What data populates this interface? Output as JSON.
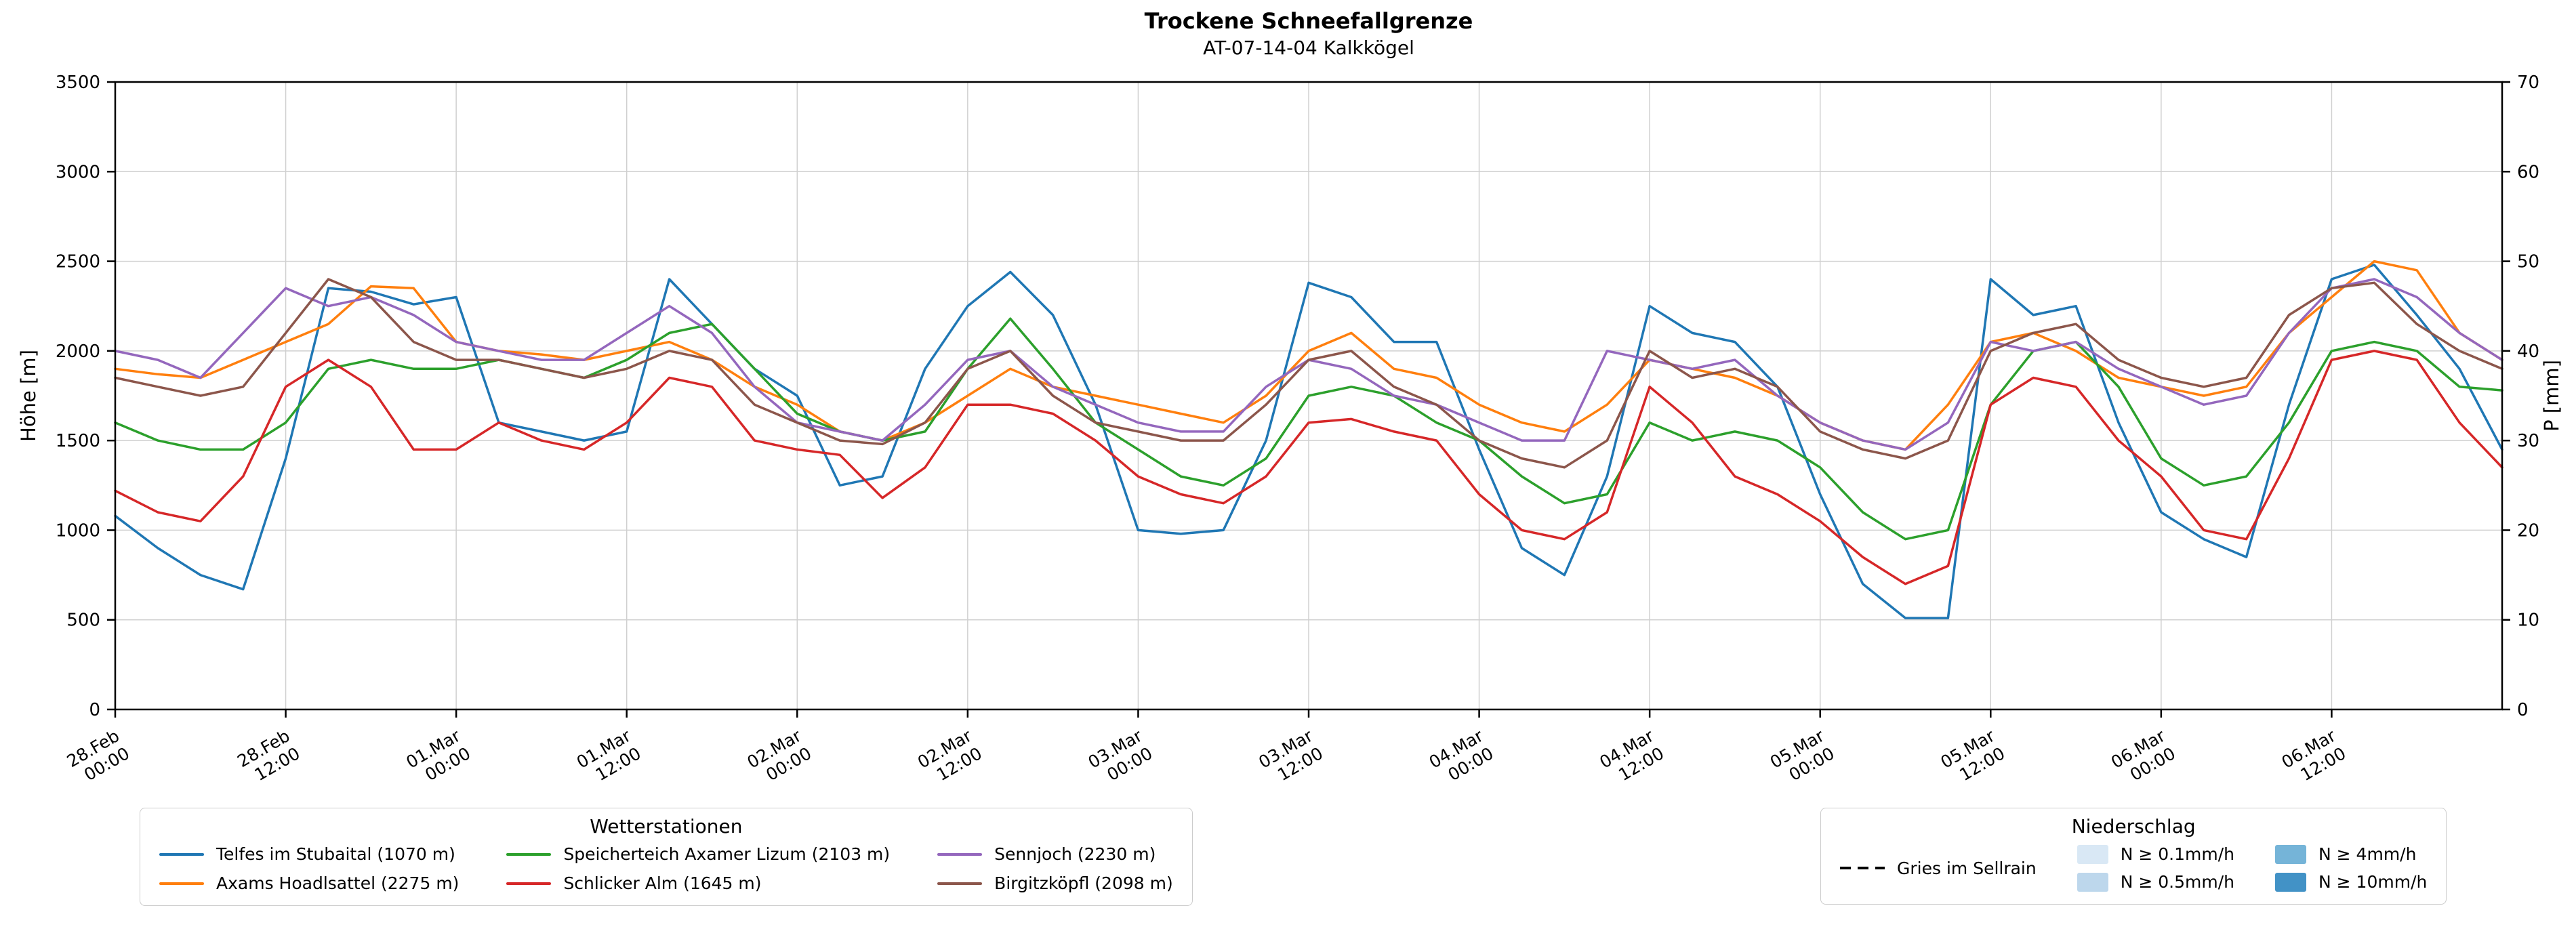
{
  "title": "Trockene Schneefallgrenze",
  "subtitle": "AT-07-14-04 Kalkkögel",
  "chart_data": {
    "type": "line",
    "title": "Trockene Schneefallgrenze",
    "subtitle": "AT-07-14-04 Kalkkögel",
    "ylabel_left": "Höhe [m]",
    "ylabel_right": "P [mm]",
    "ylim_left": [
      0,
      3500
    ],
    "ylim_right": [
      0,
      70
    ],
    "yticks_left": [
      0,
      500,
      1000,
      1500,
      2000,
      2500,
      3000,
      3500
    ],
    "yticks_right": [
      0,
      10,
      20,
      30,
      40,
      50,
      60,
      70
    ],
    "grid": true,
    "legend_position": "bottom",
    "x_unit": "hours since 28.Feb 00:00",
    "x_range": [
      0,
      168
    ],
    "x_step": 3,
    "x_tick_positions": [
      0,
      12,
      24,
      36,
      48,
      60,
      72,
      84,
      96,
      108,
      120,
      132,
      144,
      156
    ],
    "x_tick_labels": [
      "28.Feb\n00:00",
      "28.Feb\n12:00",
      "01.Mar\n00:00",
      "01.Mar\n12:00",
      "02.Mar\n00:00",
      "02.Mar\n12:00",
      "03.Mar\n00:00",
      "03.Mar\n12:00",
      "04.Mar\n00:00",
      "04.Mar\n12:00",
      "05.Mar\n00:00",
      "05.Mar\n12:00",
      "06.Mar\n00:00",
      "06.Mar\n12:00"
    ],
    "series": [
      {
        "id": "telfes",
        "name": "Telfes im Stubaital (1070 m)",
        "color": "#1f77b4",
        "values": [
          1080,
          900,
          750,
          670,
          1400,
          2350,
          2330,
          2260,
          2300,
          1600,
          1550,
          1500,
          1550,
          2400,
          2150,
          1900,
          1750,
          1250,
          1300,
          1900,
          2250,
          2440,
          2200,
          1700,
          1000,
          980,
          1000,
          1500,
          2380,
          2300,
          2050,
          2050,
          1450,
          900,
          750,
          1300,
          2250,
          2100,
          2050,
          1800,
          1200,
          700,
          510,
          510,
          2400,
          2200,
          2250,
          1600,
          1100,
          950,
          850,
          1700,
          2400,
          2480,
          2200,
          1900,
          1450
        ]
      },
      {
        "id": "axams",
        "name": "Axams Hoadlsattel (2275 m)",
        "color": "#ff7f0e",
        "values": [
          1900,
          1870,
          1850,
          1950,
          2050,
          2150,
          2360,
          2350,
          2050,
          2000,
          1980,
          1950,
          2000,
          2050,
          1950,
          1800,
          1700,
          1550,
          1500,
          1600,
          1750,
          1900,
          1800,
          1750,
          1700,
          1650,
          1600,
          1750,
          2000,
          2100,
          1900,
          1850,
          1700,
          1600,
          1550,
          1700,
          1950,
          1900,
          1850,
          1750,
          1600,
          1500,
          1450,
          1700,
          2050,
          2100,
          2000,
          1850,
          1800,
          1750,
          1800,
          2100,
          2300,
          2500,
          2450,
          2100,
          1950
        ]
      },
      {
        "id": "speicherteich",
        "name": "Speicherteich Axamer Lizum (2103 m)",
        "color": "#2ca02c",
        "values": [
          1600,
          1500,
          1450,
          1450,
          1600,
          1900,
          1950,
          1900,
          1900,
          1950,
          1900,
          1850,
          1950,
          2100,
          2150,
          1900,
          1650,
          1550,
          1500,
          1550,
          1900,
          2180,
          1900,
          1600,
          1450,
          1300,
          1250,
          1400,
          1750,
          1800,
          1750,
          1600,
          1500,
          1300,
          1150,
          1200,
          1600,
          1500,
          1550,
          1500,
          1350,
          1100,
          950,
          1000,
          1700,
          2000,
          2050,
          1800,
          1400,
          1250,
          1300,
          1600,
          2000,
          2050,
          2000,
          1800,
          1780
        ]
      },
      {
        "id": "schlicker",
        "name": "Schlicker Alm (1645 m)",
        "color": "#d62728",
        "values": [
          1220,
          1100,
          1050,
          1300,
          1800,
          1950,
          1800,
          1450,
          1450,
          1600,
          1500,
          1450,
          1600,
          1850,
          1800,
          1500,
          1450,
          1420,
          1180,
          1350,
          1700,
          1700,
          1650,
          1500,
          1300,
          1200,
          1150,
          1300,
          1600,
          1620,
          1550,
          1500,
          1200,
          1000,
          950,
          1100,
          1800,
          1600,
          1300,
          1200,
          1050,
          850,
          700,
          800,
          1700,
          1850,
          1800,
          1500,
          1300,
          1000,
          950,
          1400,
          1950,
          2000,
          1950,
          1600,
          1350
        ]
      },
      {
        "id": "sennjoch",
        "name": "Sennjoch (2230 m)",
        "color": "#9467bd",
        "values": [
          2000,
          1950,
          1850,
          2100,
          2350,
          2250,
          2300,
          2200,
          2050,
          2000,
          1950,
          1950,
          2100,
          2250,
          2100,
          1800,
          1600,
          1550,
          1500,
          1700,
          1950,
          2000,
          1800,
          1700,
          1600,
          1550,
          1550,
          1800,
          1950,
          1900,
          1750,
          1700,
          1600,
          1500,
          1500,
          2000,
          1950,
          1900,
          1950,
          1750,
          1600,
          1500,
          1450,
          1600,
          2050,
          2000,
          2050,
          1900,
          1800,
          1700,
          1750,
          2100,
          2350,
          2400,
          2300,
          2100,
          1950
        ]
      },
      {
        "id": "birgitzkoepfl",
        "name": "Birgitzköpfl (2098 m)",
        "color": "#8c564b",
        "values": [
          1850,
          1800,
          1750,
          1800,
          2100,
          2400,
          2300,
          2050,
          1950,
          1950,
          1900,
          1850,
          1900,
          2000,
          1950,
          1700,
          1600,
          1500,
          1480,
          1600,
          1900,
          2000,
          1750,
          1600,
          1550,
          1500,
          1500,
          1700,
          1950,
          2000,
          1800,
          1700,
          1500,
          1400,
          1350,
          1500,
          2000,
          1850,
          1900,
          1800,
          1550,
          1450,
          1400,
          1500,
          2000,
          2100,
          2150,
          1950,
          1850,
          1800,
          1850,
          2200,
          2350,
          2380,
          2150,
          2000,
          1900
        ]
      }
    ]
  },
  "legends": {
    "stations": {
      "title": "Wetterstationen",
      "items": [
        {
          "id": "telfes",
          "label": "Telfes im Stubaital (1070 m)",
          "color": "#1f77b4"
        },
        {
          "id": "axams",
          "label": "Axams Hoadlsattel (2275 m)",
          "color": "#ff7f0e"
        },
        {
          "id": "speicherteich",
          "label": "Speicherteich Axamer Lizum (2103 m)",
          "color": "#2ca02c"
        },
        {
          "id": "schlicker",
          "label": "Schlicker Alm (1645 m)",
          "color": "#d62728"
        },
        {
          "id": "sennjoch",
          "label": "Sennjoch (2230 m)",
          "color": "#9467bd"
        },
        {
          "id": "birgitzkoepfl",
          "label": "Birgitzköpfl (2098 m)",
          "color": "#8c564b"
        }
      ]
    },
    "precip": {
      "title": "Niederschlag",
      "line_item": {
        "label": "Gries im Sellrain",
        "color": "#000000",
        "style": "dashed"
      },
      "patch_items": [
        {
          "id": "n01",
          "label": "N ≥ 0.1mm/h",
          "color": "#d9e8f5"
        },
        {
          "id": "n05",
          "label": "N ≥ 0.5mm/h",
          "color": "#bdd7ec"
        },
        {
          "id": "n4",
          "label": "N ≥ 4mm/h",
          "color": "#75b4d8"
        },
        {
          "id": "n10",
          "label": "N ≥ 10mm/h",
          "color": "#4292c6"
        }
      ]
    }
  }
}
